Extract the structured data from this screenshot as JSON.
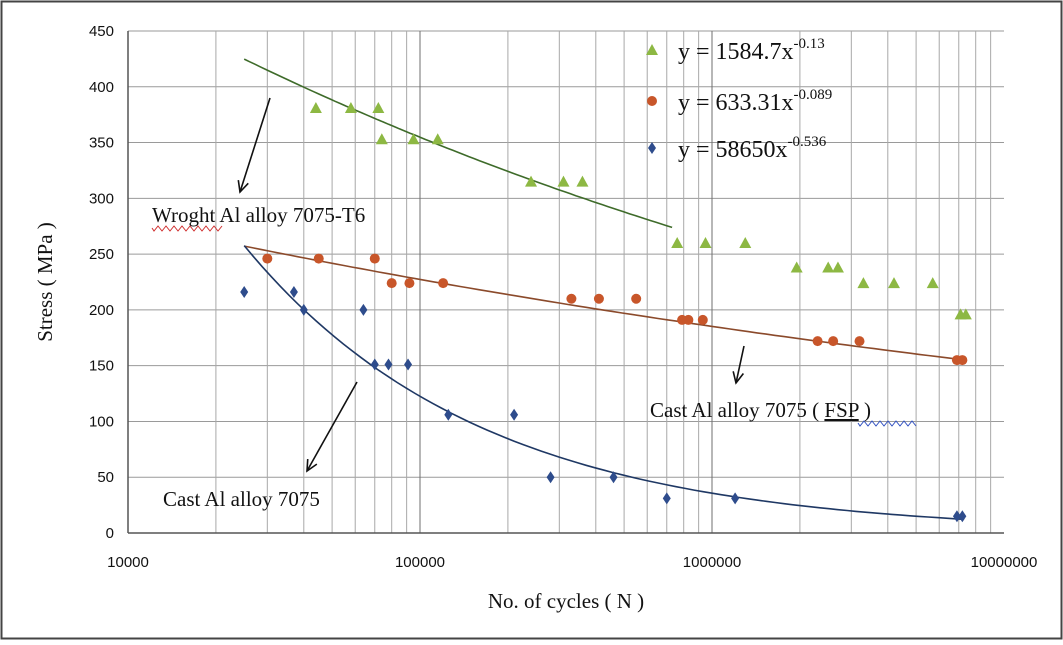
{
  "chart_data": {
    "type": "scatter",
    "xscale": "log",
    "xlim": [
      10000,
      10000000
    ],
    "ylim": [
      0,
      450
    ],
    "grid": true,
    "legend_position": "top-right",
    "xlabel": "No. of cycles ( N )",
    "ylabel": "Stress ( MPa )",
    "x_ticks": [
      10000,
      100000,
      1000000,
      10000000
    ],
    "x_tick_labels": [
      "10000",
      "100000",
      "1000000",
      "10000000"
    ],
    "y_ticks": [
      0,
      50,
      100,
      150,
      200,
      250,
      300,
      350,
      400,
      450
    ],
    "y_tick_labels": [
      "0",
      "50",
      "100",
      "150",
      "200",
      "250",
      "300",
      "350",
      "400",
      "450"
    ],
    "series": [
      {
        "key": "wrought",
        "marker": "triangle",
        "color": "#8DB843",
        "fit_color": "#3E6B2A",
        "equation": {
          "base": "y = 1584.7x",
          "exponent": "-0.13"
        },
        "fit": {
          "a": 1584.7,
          "b": -0.13,
          "x_range": [
            25000,
            730000
          ]
        },
        "points": [
          [
            44000,
            381
          ],
          [
            58000,
            381
          ],
          [
            72000,
            381
          ],
          [
            74000,
            353
          ],
          [
            95000,
            353
          ],
          [
            115000,
            353
          ],
          [
            240000,
            315
          ],
          [
            310000,
            315
          ],
          [
            360000,
            315
          ],
          [
            760000,
            260
          ],
          [
            950000,
            260
          ],
          [
            1300000,
            260
          ],
          [
            1950000,
            238
          ],
          [
            2500000,
            238
          ],
          [
            2700000,
            238
          ],
          [
            3300000,
            224
          ],
          [
            4200000,
            224
          ],
          [
            5700000,
            224
          ],
          [
            7100000,
            196
          ],
          [
            7400000,
            196
          ]
        ]
      },
      {
        "key": "cast-fsp",
        "marker": "circle",
        "color": "#C8562A",
        "fit_color": "#8B4A2B",
        "equation": {
          "base": "y = 633.31x",
          "exponent": "-0.089"
        },
        "fit": {
          "a": 633.31,
          "b": -0.089,
          "x_range": [
            25000,
            7300000
          ]
        },
        "points": [
          [
            30000,
            246
          ],
          [
            45000,
            246
          ],
          [
            70000,
            246
          ],
          [
            80000,
            224
          ],
          [
            92000,
            224
          ],
          [
            120000,
            224
          ],
          [
            330000,
            210
          ],
          [
            410000,
            210
          ],
          [
            550000,
            210
          ],
          [
            790000,
            191
          ],
          [
            830000,
            191
          ],
          [
            930000,
            191
          ],
          [
            2300000,
            172
          ],
          [
            2600000,
            172
          ],
          [
            3200000,
            172
          ],
          [
            6900000,
            155
          ],
          [
            7200000,
            155
          ]
        ]
      },
      {
        "key": "cast",
        "marker": "diamond",
        "color": "#2E4C8C",
        "fit_color": "#1F3864",
        "equation": {
          "base": "y = 58650x",
          "exponent": "-0.536"
        },
        "fit": {
          "a": 58650,
          "b": -0.536,
          "x_range": [
            25000,
            7300000
          ]
        },
        "points": [
          [
            25000,
            216
          ],
          [
            37000,
            216
          ],
          [
            40000,
            200
          ],
          [
            64000,
            200
          ],
          [
            70000,
            151
          ],
          [
            78000,
            151
          ],
          [
            91000,
            151
          ],
          [
            125000,
            106
          ],
          [
            210000,
            106
          ],
          [
            280000,
            50
          ],
          [
            460000,
            50
          ],
          [
            700000,
            31
          ],
          [
            1200000,
            31
          ],
          [
            6900000,
            15
          ],
          [
            7200000,
            15
          ]
        ]
      }
    ],
    "annotations": [
      {
        "key": "wrought",
        "text": "Wroght Al alloy 7075-T6"
      },
      {
        "key": "cast-fsp",
        "text_before": "Cast Al alloy 7075 ( ",
        "text_underlined": "FSP",
        "text_after": " )"
      },
      {
        "key": "cast",
        "text": "Cast Al alloy 7075"
      }
    ]
  }
}
